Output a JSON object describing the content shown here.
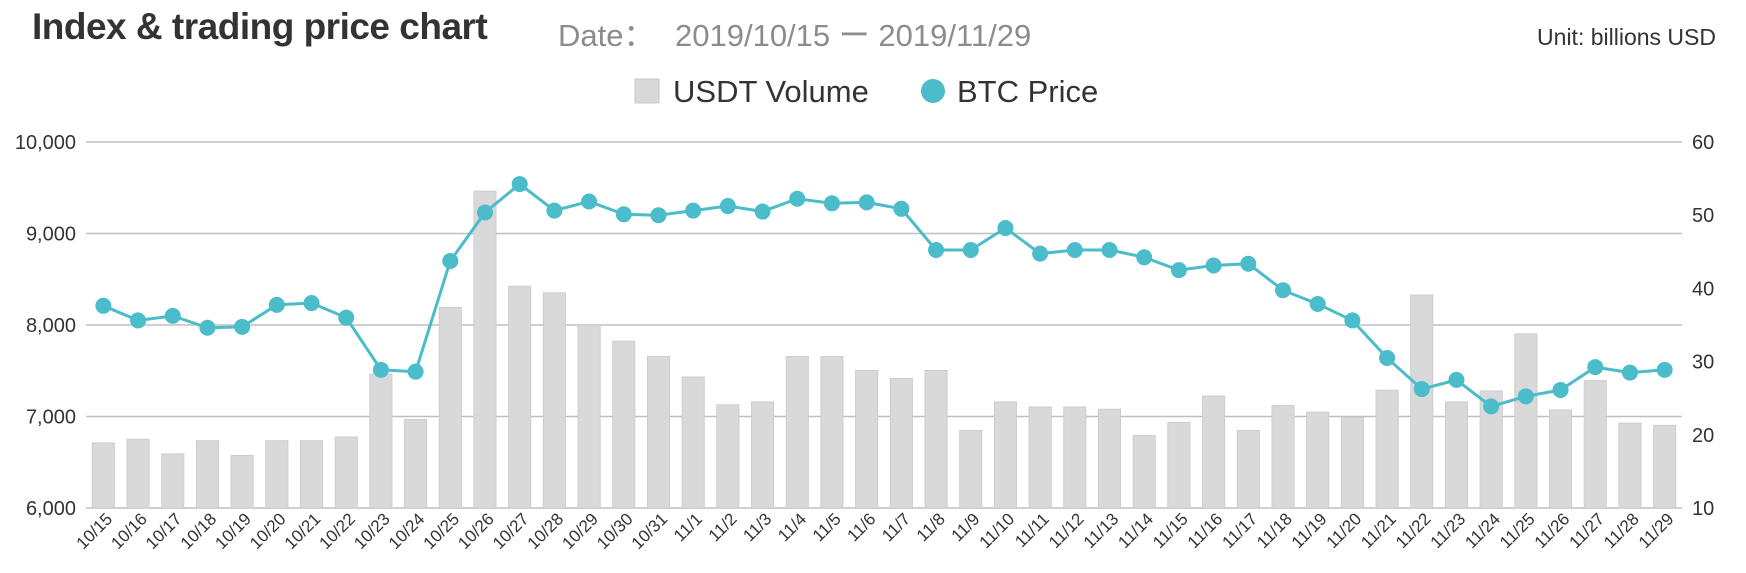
{
  "header": {
    "title": "Index & trading price chart",
    "date_label": "Date：",
    "date_range": "2019/10/15 ー 2019/11/29",
    "unit": "Unit: billions USD"
  },
  "colors": {
    "bar": "#d9d9d9",
    "bar_stroke": "#c8c8c8",
    "line": "#4bbcc9",
    "grid": "#bfbfbf",
    "axis_text": "#333333"
  },
  "chart_data": {
    "type": "bar+line",
    "legend_position": "top-center",
    "grid": true,
    "categories": [
      "10/15",
      "10/16",
      "10/17",
      "10/18",
      "10/19",
      "10/20",
      "10/21",
      "10/22",
      "10/23",
      "10/24",
      "10/25",
      "10/26",
      "10/27",
      "10/28",
      "10/29",
      "10/30",
      "10/31",
      "11/1",
      "11/2",
      "11/3",
      "11/4",
      "11/5",
      "11/6",
      "11/7",
      "11/8",
      "11/9",
      "11/10",
      "11/11",
      "11/12",
      "11/13",
      "11/14",
      "11/15",
      "11/16",
      "11/17",
      "11/18",
      "11/19",
      "11/20",
      "11/21",
      "11/22",
      "11/23",
      "11/24",
      "11/25",
      "11/26",
      "11/27",
      "11/28",
      "11/29"
    ],
    "left_axis": {
      "ticks": [
        10000,
        9000,
        8000,
        7000,
        6000
      ],
      "tick_labels": [
        "10,000",
        "9,000",
        "8,000",
        "7,000",
        "6,000"
      ],
      "range": [
        6000,
        10000
      ]
    },
    "right_axis": {
      "ticks": [
        60,
        50,
        40,
        30,
        20,
        10
      ],
      "tick_labels": [
        "60",
        "50",
        "40",
        "30",
        "20",
        "10"
      ],
      "range": [
        10,
        60
      ]
    },
    "series": [
      {
        "name": "USDT Volume",
        "type": "bar",
        "axis": "right",
        "values": [
          18.9,
          19.4,
          17.4,
          19.2,
          17.2,
          19.2,
          19.2,
          19.7,
          28.3,
          22.1,
          37.4,
          53.3,
          40.3,
          39.4,
          35.0,
          32.8,
          30.7,
          27.9,
          24.1,
          24.5,
          30.7,
          30.7,
          28.8,
          27.7,
          28.8,
          20.6,
          24.5,
          23.8,
          23.8,
          23.5,
          19.9,
          21.7,
          25.3,
          20.6,
          24.0,
          23.1,
          22.4,
          26.1,
          39.1,
          24.5,
          26.0,
          33.8,
          23.4,
          27.4,
          21.6,
          21.3
        ]
      },
      {
        "name": "BTC Price",
        "type": "line",
        "axis": "left",
        "values": [
          8210,
          8050,
          8100,
          7970,
          7980,
          8220,
          8240,
          8080,
          7510,
          7490,
          8700,
          9230,
          9540,
          9250,
          9350,
          9210,
          9200,
          9250,
          9300,
          9240,
          9380,
          9330,
          9340,
          9270,
          8820,
          8820,
          9060,
          8780,
          8820,
          8820,
          8740,
          8600,
          8650,
          8670,
          8380,
          8230,
          8050,
          7640,
          7300,
          7400,
          7110,
          7220,
          7290,
          7540,
          7480,
          7510
        ]
      }
    ]
  }
}
